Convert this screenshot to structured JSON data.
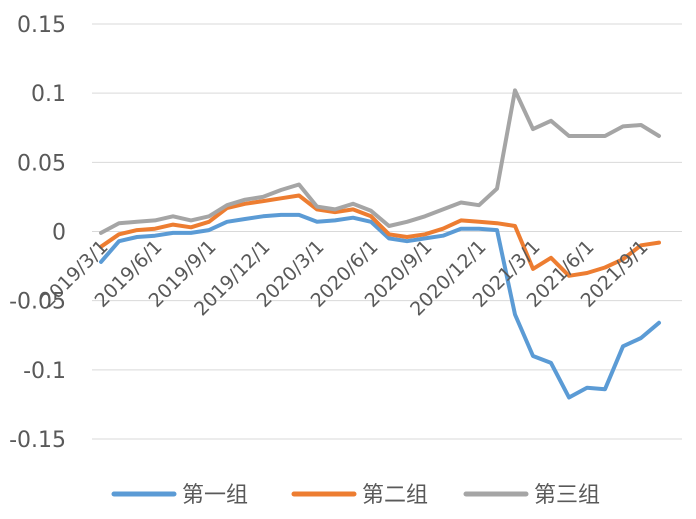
{
  "chart_data": {
    "type": "line",
    "title": "",
    "xlabel": "",
    "ylabel": "",
    "ylim": [
      -0.15,
      0.15
    ],
    "yticks": [
      0.15,
      0.1,
      0.05,
      0,
      -0.05,
      -0.1,
      -0.15
    ],
    "ytick_labels": [
      "0.15",
      "0.1",
      "0.05",
      "0",
      "-0.05",
      "-0.1",
      "-0.15"
    ],
    "x_count": 34,
    "xtick_labels": [
      {
        "index": 0,
        "label": "2019/3/1"
      },
      {
        "index": 3,
        "label": "2019/6/1"
      },
      {
        "index": 6,
        "label": "2019/9/1"
      },
      {
        "index": 9,
        "label": "2019/12/1"
      },
      {
        "index": 12,
        "label": "2020/3/1"
      },
      {
        "index": 15,
        "label": "2020/6/1"
      },
      {
        "index": 18,
        "label": "2020/9/1"
      },
      {
        "index": 21,
        "label": "2020/12/1"
      },
      {
        "index": 24,
        "label": "2021/3/1"
      },
      {
        "index": 27,
        "label": "2021/6/1"
      },
      {
        "index": 30,
        "label": "2021/9/1"
      }
    ],
    "grid": true,
    "legend_position": "bottom",
    "series": [
      {
        "name": "第一组",
        "color": "#5B9BD5",
        "values": [
          -0.022,
          -0.007,
          -0.004,
          -0.003,
          -0.001,
          -0.001,
          0.001,
          0.007,
          0.009,
          0.011,
          0.012,
          0.012,
          0.007,
          0.008,
          0.01,
          0.007,
          -0.005,
          -0.007,
          -0.005,
          -0.003,
          0.002,
          0.002,
          0.001,
          -0.06,
          -0.09,
          -0.095,
          -0.12,
          -0.113,
          -0.114,
          -0.083,
          -0.077,
          -0.066
        ]
      },
      {
        "name": "第二组",
        "color": "#ED7D31",
        "values": [
          -0.011,
          -0.002,
          0.001,
          0.002,
          0.005,
          0.003,
          0.007,
          0.017,
          0.02,
          0.022,
          0.024,
          0.026,
          0.016,
          0.014,
          0.016,
          0.011,
          -0.002,
          -0.004,
          -0.002,
          0.002,
          0.008,
          0.007,
          0.006,
          0.004,
          -0.027,
          -0.019,
          -0.032,
          -0.03,
          -0.026,
          -0.02,
          -0.01,
          -0.008
        ]
      },
      {
        "name": "第三组",
        "color": "#A5A5A5",
        "values": [
          -0.001,
          0.006,
          0.007,
          0.008,
          0.011,
          0.008,
          0.011,
          0.019,
          0.023,
          0.025,
          0.03,
          0.034,
          0.018,
          0.016,
          0.02,
          0.015,
          0.004,
          0.007,
          0.011,
          0.016,
          0.021,
          0.019,
          0.031,
          0.102,
          0.074,
          0.08,
          0.069,
          0.069,
          0.069,
          0.076,
          0.077,
          0.069
        ]
      }
    ]
  }
}
